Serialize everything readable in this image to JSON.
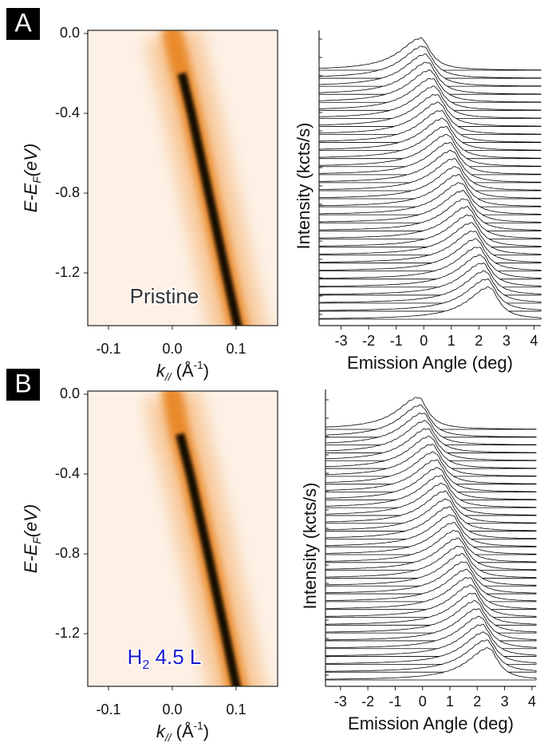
{
  "chart_data": [
    {
      "type": "heatmap",
      "panel_label": "A",
      "annotation_parts": [
        {
          "text": "Pristine"
        }
      ],
      "annotation_color": "#333333",
      "xlabel_parts": [
        {
          "text": "k",
          "italic": true
        },
        {
          "text": "//",
          "sub": true,
          "italic": true
        },
        {
          "text": " (Å"
        },
        {
          "text": "-1",
          "sup": true
        },
        {
          "text": ")"
        }
      ],
      "ylabel_parts": [
        {
          "text": "E-E",
          "italic": true
        },
        {
          "text": "F",
          "sub": true,
          "italic": true
        },
        {
          "text": "(eV)",
          "italic": true
        }
      ],
      "x": [
        0.0,
        0.015,
        0.03,
        0.057,
        0.084,
        0.102
      ],
      "values": [
        0.0,
        -0.2,
        -0.4,
        -0.8,
        -1.2,
        -1.46
      ],
      "xlim": [
        -0.1325,
        0.165
      ],
      "ylim": [
        -1.464,
        0.016
      ],
      "xticks": [
        -0.1,
        {
          "value": 0,
          "label": "0.0"
        },
        0.1
      ],
      "yticks": [
        {
          "value": 0,
          "label": "0.0"
        },
        -0.4,
        -0.8,
        -1.2
      ]
    },
    {
      "type": "waterfall",
      "ylabel": "Intensity (kcts/s)",
      "xlabel": "Emission Angle (deg)",
      "peaks": [
        -0.1,
        -0.02,
        0.06,
        0.14,
        0.22,
        0.3,
        0.38,
        0.46,
        0.54,
        0.62,
        0.7,
        0.78,
        0.86,
        0.94,
        1.02,
        1.1,
        1.18,
        1.26,
        1.34,
        1.42,
        1.5,
        1.58,
        1.66,
        1.74,
        1.82,
        1.9,
        1.98,
        2.06,
        2.14,
        2.22,
        2.3,
        2.38
      ],
      "xlim": [
        -3.8,
        4.25
      ],
      "xticks": [
        -3,
        -2,
        -1,
        0,
        1,
        2,
        3,
        4
      ]
    },
    {
      "type": "heatmap",
      "panel_label": "B",
      "annotation_parts": [
        {
          "text": "H"
        },
        {
          "text": "2",
          "sub": true
        },
        {
          "text": " 4.5 L"
        }
      ],
      "annotation_color": "#1a1ad0",
      "xlabel_parts": [
        {
          "text": "k",
          "italic": true
        },
        {
          "text": "//",
          "sub": true,
          "italic": true
        },
        {
          "text": " (Å"
        },
        {
          "text": "-1",
          "sup": true
        },
        {
          "text": ")"
        }
      ],
      "ylabel_parts": [
        {
          "text": "E-E",
          "italic": true
        },
        {
          "text": "F",
          "sub": true,
          "italic": true
        },
        {
          "text": "(eV)",
          "italic": true
        }
      ],
      "x": [
        0.0,
        0.012,
        0.028,
        0.056,
        0.083,
        0.1
      ],
      "values": [
        0.0,
        -0.2,
        -0.4,
        -0.8,
        -1.2,
        -1.46
      ],
      "xlim": [
        -0.1325,
        0.165
      ],
      "ylim": [
        -1.464,
        0.016
      ],
      "xticks": [
        -0.1,
        {
          "value": 0,
          "label": "0.0"
        },
        0.1
      ],
      "yticks": [
        {
          "value": 0,
          "label": "0.0"
        },
        -0.4,
        -0.8,
        -1.2
      ]
    },
    {
      "type": "waterfall",
      "ylabel": "Intensity (kcts/s)",
      "xlabel": "Emission Angle (deg)",
      "peaks": [
        -0.15,
        -0.07,
        0.02,
        0.1,
        0.18,
        0.26,
        0.34,
        0.42,
        0.5,
        0.58,
        0.66,
        0.74,
        0.82,
        0.9,
        0.98,
        1.06,
        1.14,
        1.22,
        1.3,
        1.38,
        1.46,
        1.54,
        1.62,
        1.7,
        1.78,
        1.86,
        1.94,
        2.02,
        2.1,
        2.18,
        2.26,
        2.34,
        2.42
      ],
      "xlim": [
        -3.55,
        4.15
      ],
      "xticks": [
        -3,
        -2,
        -1,
        0,
        1,
        2,
        3,
        4
      ]
    }
  ]
}
